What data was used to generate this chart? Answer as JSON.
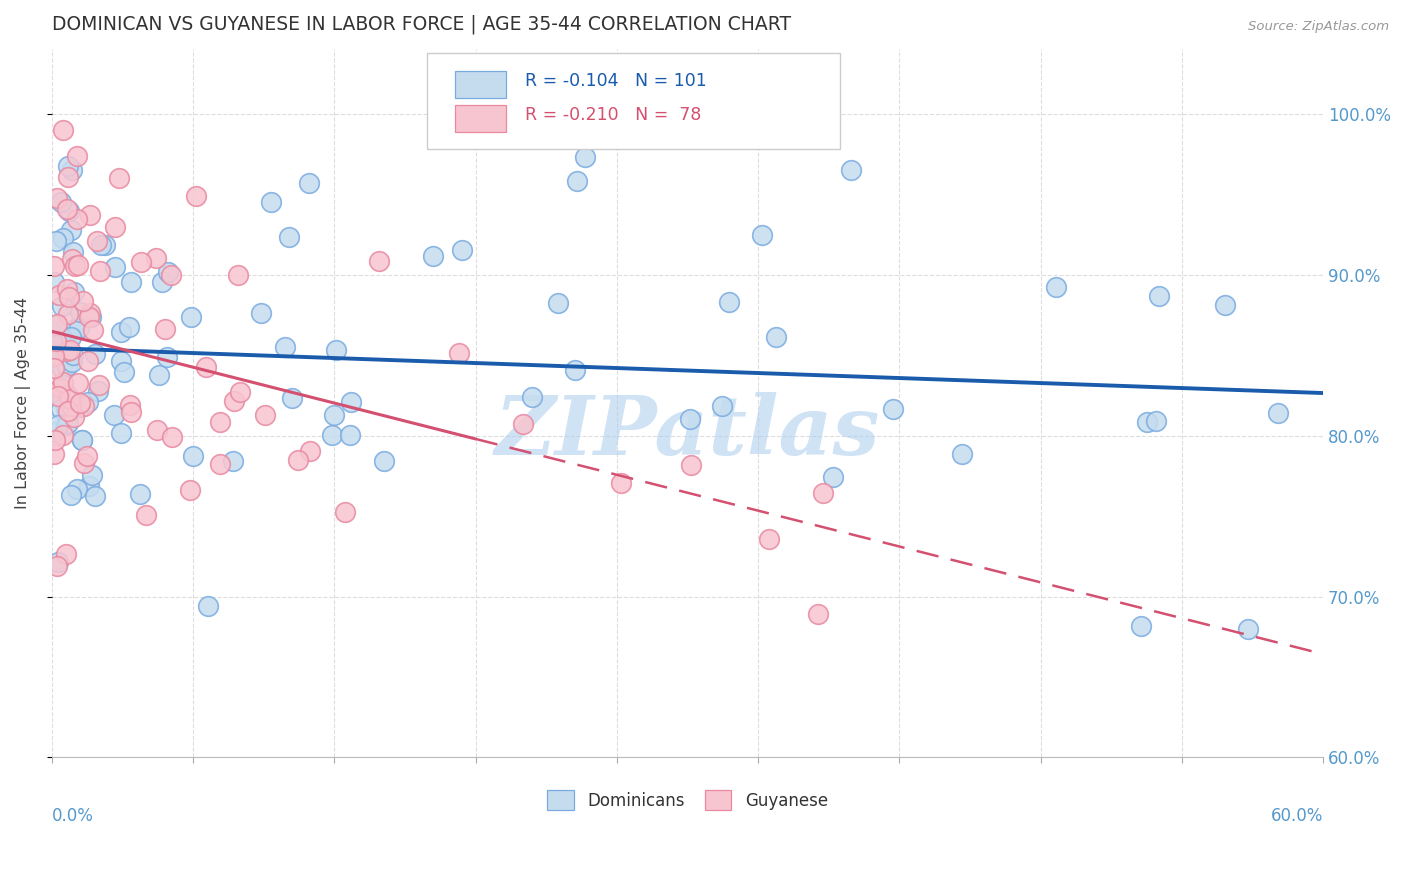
{
  "title": "DOMINICAN VS GUYANESE IN LABOR FORCE | AGE 35-44 CORRELATION CHART",
  "source": "Source: ZipAtlas.com",
  "ylabel": "In Labor Force | Age 35-44",
  "xlim": [
    0.0,
    0.6
  ],
  "ylim": [
    0.6,
    1.04
  ],
  "legend_blue_r": "-0.104",
  "legend_blue_n": "101",
  "legend_pink_r": "-0.210",
  "legend_pink_n": "78",
  "blue_fill": "#C5DCEF",
  "blue_edge": "#7AABE0",
  "pink_fill": "#F7C5D0",
  "pink_edge": "#E889A0",
  "blue_line": "#1A5BAB",
  "pink_line": "#D45070",
  "grid_color": "#DDDDDD",
  "axis_color": "#5599CC",
  "title_color": "#333333",
  "watermark_color": "#AACCEE",
  "right_yticks": [
    1.0,
    0.9,
    0.8,
    0.7,
    0.6
  ],
  "right_yticklabels": [
    "100.0%",
    "90.0%",
    "80.0%",
    "70.0%",
    "60.0%"
  ],
  "seed": 7777
}
